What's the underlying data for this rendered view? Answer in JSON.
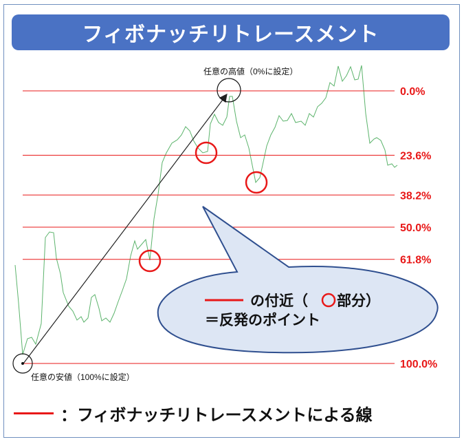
{
  "title": "フィボナッチリトレースメント",
  "high_label": "任意の高値（0%に設定）",
  "low_label": "任意の安値（100%に設定）",
  "levels": [
    {
      "label": "0.0%",
      "ratio": 0.0
    },
    {
      "label": "23.6%",
      "ratio": 0.236
    },
    {
      "label": "38.2%",
      "ratio": 0.382
    },
    {
      "label": "50.0%",
      "ratio": 0.5
    },
    {
      "label": "61.8%",
      "ratio": 0.618
    },
    {
      "label": "100.0%",
      "ratio": 1.0
    }
  ],
  "callout": {
    "line1_suffix": "の付近（",
    "line1_part": "部分）",
    "line2": "＝反発のポイント"
  },
  "legend": "：フィボナッチリトレースメントによる線",
  "colors": {
    "fib_line": "#e81818",
    "price_line": "#5bb36b",
    "title_bg": "#4a72c4",
    "callout_fill": "#dde6f4",
    "callout_stroke": "#2f4f8f"
  }
}
